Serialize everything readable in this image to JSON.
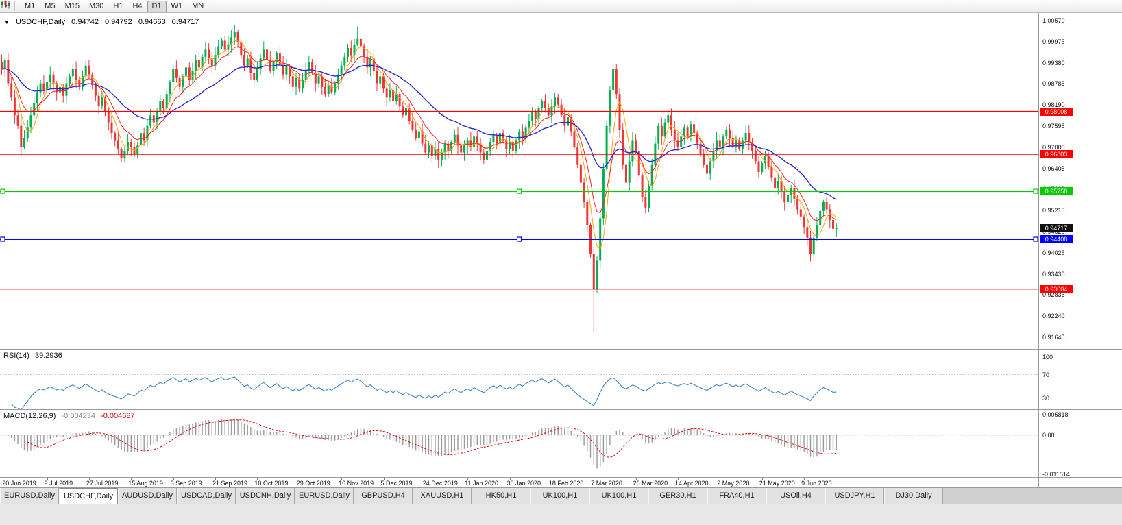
{
  "toolbar": {
    "periods": [
      "M1",
      "M5",
      "M15",
      "M30",
      "H1",
      "H4",
      "D1",
      "W1",
      "MN"
    ],
    "active_period": "D1"
  },
  "chart": {
    "title": "USDCHF,Daily",
    "ohlc": {
      "open": "0.94742",
      "high": "0.94792",
      "low": "0.94663",
      "close": "0.94717"
    },
    "last_price": "0.94717",
    "price_axis": {
      "top_price": 1.0057,
      "bottom_price": 0.91645,
      "ticks": [
        "1.00570",
        "0.99975",
        "0.99380",
        "0.98785",
        "0.98190",
        "0.97595",
        "0.97000",
        "0.96405",
        "0.95810",
        "0.95215",
        "0.94620",
        "0.94025",
        "0.93430",
        "0.92835",
        "0.92240",
        "0.91645"
      ]
    },
    "hlines": [
      {
        "price": 0.98008,
        "label": "0.98008",
        "color": "#ff0000",
        "width": 1.4,
        "handles": false
      },
      {
        "price": 0.96803,
        "label": "0.96803",
        "color": "#ff0000",
        "width": 1.4,
        "handles": false
      },
      {
        "price": 0.95758,
        "label": "0.95758",
        "color": "#00cc00",
        "width": 2,
        "handles": true
      },
      {
        "price": 0.94408,
        "label": "0.94408",
        "color": "#0000ff",
        "width": 2,
        "handles": true
      },
      {
        "price": 0.93004,
        "label": "0.93004",
        "color": "#ff0000",
        "width": 1.4,
        "handles": false
      }
    ],
    "colors": {
      "bull": "#00b050",
      "bear": "#f03535",
      "ma_fast": "#ffa200",
      "ma_mid": "#ff2020",
      "ma_slow": "#2929cc"
    },
    "ma_periods": {
      "fast": 5,
      "mid": 10,
      "slow": 30
    }
  },
  "chart_data": {
    "type": "candlestick",
    "symbol": "USDCHF",
    "timeframe": "Daily",
    "price_range": [
      0.91645,
      1.0057
    ],
    "closes": [
      0.992,
      0.9945,
      0.988,
      0.984,
      0.979,
      0.976,
      0.97,
      0.9725,
      0.9755,
      0.979,
      0.9825,
      0.9855,
      0.988,
      0.986,
      0.9885,
      0.9905,
      0.988,
      0.9855,
      0.987,
      0.9845,
      0.988,
      0.99,
      0.992,
      0.989,
      0.987,
      0.99,
      0.993,
      0.9905,
      0.9875,
      0.9845,
      0.9815,
      0.984,
      0.98,
      0.977,
      0.974,
      0.972,
      0.9695,
      0.967,
      0.969,
      0.9715,
      0.97,
      0.968,
      0.9705,
      0.974,
      0.972,
      0.976,
      0.979,
      0.977,
      0.98,
      0.983,
      0.981,
      0.985,
      0.9885,
      0.992,
      0.9895,
      0.987,
      0.99,
      0.9925,
      0.989,
      0.9915,
      0.9945,
      0.9925,
      0.9955,
      0.9975,
      0.995,
      0.993,
      0.996,
      0.9985,
      1.0,
      0.9975,
      0.999,
      1.001,
      1.0025,
      0.9995,
      0.996,
      0.993,
      0.995,
      0.991,
      0.989,
      0.992,
      0.995,
      0.9975,
      0.9945,
      0.9915,
      0.994,
      0.9965,
      0.9935,
      0.9905,
      0.993,
      0.99,
      0.987,
      0.9895,
      0.9865,
      0.989,
      0.9915,
      0.994,
      0.991,
      0.988,
      0.99,
      0.987,
      0.985,
      0.9875,
      0.9855,
      0.988,
      0.9905,
      0.993,
      0.9955,
      0.998,
      0.996,
      0.999,
      1.0005,
      0.9985,
      0.9955,
      0.9925,
      0.995,
      0.9915,
      0.988,
      0.99,
      0.9865,
      0.984,
      0.986,
      0.983,
      0.985,
      0.9815,
      0.979,
      0.981,
      0.9775,
      0.975,
      0.9725,
      0.9745,
      0.971,
      0.9685,
      0.9705,
      0.9675,
      0.9695,
      0.9665,
      0.9685,
      0.971,
      0.969,
      0.9715,
      0.9735,
      0.9705,
      0.9685,
      0.9705,
      0.972,
      0.97,
      0.973,
      0.971,
      0.9685,
      0.9665,
      0.969,
      0.9715,
      0.9735,
      0.971,
      0.974,
      0.972,
      0.9695,
      0.9715,
      0.969,
      0.972,
      0.9745,
      0.9725,
      0.9755,
      0.9775,
      0.98,
      0.978,
      0.981,
      0.983,
      0.981,
      0.979,
      0.9815,
      0.984,
      0.982,
      0.979,
      0.976,
      0.9785,
      0.9745,
      0.97,
      0.965,
      0.96,
      0.9545,
      0.948,
      0.94,
      0.93,
      0.938,
      0.95,
      0.964,
      0.976,
      0.986,
      0.992,
      0.985,
      0.975,
      0.965,
      0.96,
      0.966,
      0.972,
      0.969,
      0.962,
      0.956,
      0.953,
      0.959,
      0.965,
      0.971,
      0.976,
      0.973,
      0.977,
      0.979,
      0.975,
      0.972,
      0.97,
      0.973,
      0.9755,
      0.973,
      0.9765,
      0.974,
      0.971,
      0.968,
      0.965,
      0.9625,
      0.966,
      0.969,
      0.972,
      0.97,
      0.973,
      0.975,
      0.9725,
      0.97,
      0.972,
      0.9695,
      0.972,
      0.974,
      0.9715,
      0.969,
      0.966,
      0.963,
      0.9655,
      0.9675,
      0.9645,
      0.9615,
      0.9585,
      0.9605,
      0.9575,
      0.9545,
      0.9565,
      0.9585,
      0.9555,
      0.9525,
      0.9505,
      0.9475,
      0.9445,
      0.94,
      0.9445,
      0.948,
      0.952,
      0.9545,
      0.9525,
      0.9495,
      0.947,
      0.94717
    ],
    "wick_overrides": {
      "72": {
        "high": 1.0045
      },
      "110": {
        "high": 1.004
      },
      "183": {
        "low": 0.918
      },
      "189": {
        "high": 0.9935
      },
      "250": {
        "low": 0.9378
      }
    }
  },
  "time_axis": {
    "first_bar": 1,
    "bar_step": 13,
    "labels": [
      "20 Jun 2019",
      "9 Jul 2019",
      "27 Jul 2019",
      "15 Aug 2019",
      "3 Sep 2019",
      "21 Sep 2019",
      "10 Oct 2019",
      "29 Oct 2019",
      "16 Nov 2019",
      "5 Dec 2019",
      "24 Dec 2019",
      "11 Jan 2020",
      "30 Jan 2020",
      "18 Feb 2020",
      "7 Mar 2020",
      "26 Mar 2020",
      "14 Apr 2020",
      "2 May 2020",
      "21 May 2020",
      "9 Jun 2020"
    ]
  },
  "rsi": {
    "label": "RSI(14)",
    "value": "39.2936",
    "period": 14,
    "color": "#3d85c8",
    "level_values": [
      100,
      70,
      30
    ],
    "level_labels": [
      "100",
      "70",
      "30"
    ],
    "level_lines": [
      70,
      30
    ]
  },
  "macd": {
    "label": "MACD(12,26,9)",
    "main_value": "-0.004234",
    "signal_value": "-0.004687",
    "fast": 12,
    "slow": 26,
    "signal": 9,
    "axis_labels": [
      "0.005818",
      "0.00",
      "-0.011514"
    ],
    "hist_color": "#9a9a9a",
    "signal_color": "#e00000"
  },
  "tabs": {
    "active_index": 1,
    "items": [
      "EURUSD,Daily",
      "USDCHF,Daily",
      "AUDUSD,Daily",
      "USDCAD,Daily",
      "USDCNH,Daily",
      "EURUSD,Daily",
      "GBPUSD,H4",
      "XAUUSD,H1",
      "HK50,H1",
      "UK100,H1",
      "UK100,H1",
      "GER30,H1",
      "FRA40,H1",
      "USOil,H4",
      "USDJPY,H1",
      "DJ30,Daily"
    ]
  }
}
